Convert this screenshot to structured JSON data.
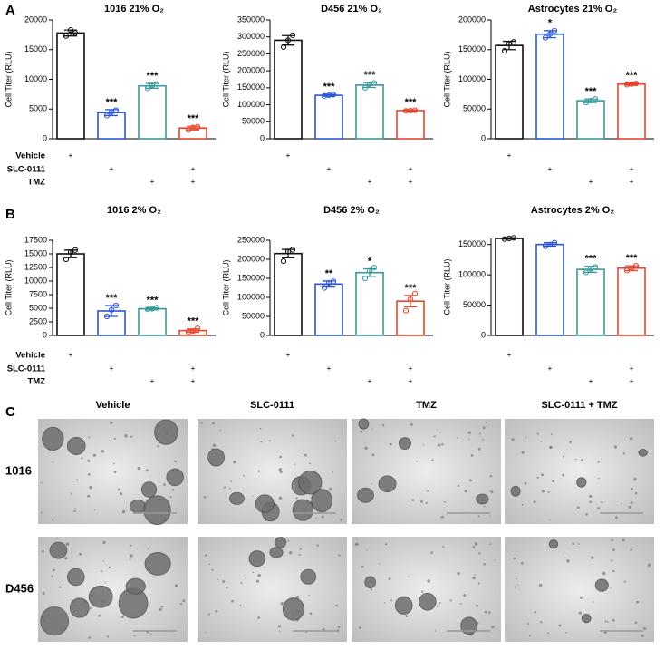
{
  "panel_labels": [
    "A",
    "B",
    "C"
  ],
  "treatments": {
    "rows": [
      "Vehicle",
      "SLC-0111",
      "TMZ"
    ],
    "marks": [
      [
        "+",
        null,
        null,
        null
      ],
      [
        null,
        "+",
        null,
        "+"
      ],
      [
        null,
        null,
        "+",
        "+"
      ]
    ]
  },
  "chart_data": [
    {
      "type": "bar",
      "title": "1016 21% O₂",
      "y_label": "Cell Titer (RLU)",
      "values": [
        17800,
        4400,
        8900,
        1800
      ],
      "errors": [
        500,
        500,
        400,
        300
      ],
      "points": [
        [
          17300,
          18300,
          17800
        ],
        [
          3900,
          4500,
          4800
        ],
        [
          8500,
          9000,
          9200
        ],
        [
          1500,
          1900,
          2000
        ]
      ],
      "significance": [
        null,
        "***",
        "***",
        "***"
      ],
      "colors": [
        "#111111",
        "#2a55d8",
        "#3a9a9a",
        "#e8452c"
      ],
      "ylim": [
        0,
        20000
      ],
      "yticks": [
        0,
        5000,
        10000,
        15000,
        20000
      ]
    },
    {
      "type": "bar",
      "title": "D456 21% O₂",
      "y_label": "Cell Titer (RLU)",
      "values": [
        290000,
        128000,
        158000,
        83000
      ],
      "errors": [
        14000,
        3000,
        7000,
        2000
      ],
      "points": [
        [
          270000,
          290000,
          305000
        ],
        [
          126000,
          128000,
          130000
        ],
        [
          150000,
          160000,
          164000
        ],
        [
          82000,
          83000,
          84000
        ]
      ],
      "significance": [
        null,
        "***",
        "***",
        "***"
      ],
      "colors": [
        "#111111",
        "#2a55d8",
        "#3a9a9a",
        "#e8452c"
      ],
      "ylim": [
        0,
        350000
      ],
      "yticks": [
        0,
        50000,
        100000,
        150000,
        200000,
        250000,
        300000,
        350000
      ]
    },
    {
      "type": "bar",
      "title": "Astrocytes 21% O₂",
      "y_label": "Cell Titer (RLU)",
      "values": [
        157000,
        176000,
        64000,
        92000
      ],
      "errors": [
        7000,
        6000,
        3000,
        2000
      ],
      "points": [
        [
          148000,
          160000,
          163000
        ],
        [
          170000,
          176000,
          182000
        ],
        [
          61000,
          64000,
          67000
        ],
        [
          91000,
          92000,
          93000
        ]
      ],
      "significance": [
        null,
        "*",
        "***",
        "***"
      ],
      "colors": [
        "#111111",
        "#2a55d8",
        "#3a9a9a",
        "#e8452c"
      ],
      "ylim": [
        0,
        200000
      ],
      "yticks": [
        0,
        50000,
        100000,
        150000,
        200000
      ]
    },
    {
      "type": "bar",
      "title": "1016 2% O₂",
      "y_label": "Cell Titer (RLU)",
      "values": [
        15000,
        4500,
        4900,
        900
      ],
      "errors": [
        700,
        1000,
        200,
        300
      ],
      "points": [
        [
          14000,
          15300,
          15700
        ],
        [
          3500,
          4700,
          5500
        ],
        [
          4800,
          4900,
          5100
        ],
        [
          600,
          800,
          1300
        ]
      ],
      "significance": [
        null,
        "***",
        "***",
        "***"
      ],
      "colors": [
        "#111111",
        "#2a55d8",
        "#3a9a9a",
        "#e8452c"
      ],
      "ylim": [
        0,
        17500
      ],
      "yticks": [
        0,
        2500,
        5000,
        7500,
        10000,
        12500,
        15000,
        17500
      ]
    },
    {
      "type": "bar",
      "title": "D456 2% O₂",
      "y_label": "Cell Titer (RLU)",
      "values": [
        215000,
        135000,
        165000,
        90000
      ],
      "errors": [
        11000,
        8000,
        10000,
        15000
      ],
      "points": [
        [
          195000,
          220000,
          225000
        ],
        [
          125000,
          138000,
          142000
        ],
        [
          150000,
          170000,
          178000
        ],
        [
          65000,
          95000,
          110000
        ]
      ],
      "significance": [
        null,
        "**",
        "*",
        "***"
      ],
      "colors": [
        "#111111",
        "#2a55d8",
        "#3a9a9a",
        "#e8452c"
      ],
      "ylim": [
        0,
        250000
      ],
      "yticks": [
        0,
        50000,
        100000,
        150000,
        200000,
        250000
      ]
    },
    {
      "type": "bar",
      "title": "Astrocytes 2% O₂",
      "y_label": "Cell Titer (RLU)",
      "values": [
        160000,
        150000,
        109000,
        111000
      ],
      "errors": [
        1000,
        3000,
        5000,
        4000
      ],
      "points": [
        [
          159000,
          160000,
          161000
        ],
        [
          147000,
          150000,
          153000
        ],
        [
          104000,
          110000,
          113000
        ],
        [
          107000,
          111000,
          115000
        ]
      ],
      "significance": [
        null,
        null,
        "***",
        "***"
      ],
      "colors": [
        "#111111",
        "#2a55d8",
        "#3a9a9a",
        "#e8452c"
      ],
      "ylim": [
        0,
        160000
      ],
      "yticks": [
        0,
        50000,
        100000,
        150000
      ]
    }
  ],
  "panel_c": {
    "columns": [
      "Vehicle",
      "SLC-0111",
      "TMZ",
      "SLC-0111 + TMZ"
    ],
    "rows": [
      "1016",
      "D456"
    ]
  }
}
